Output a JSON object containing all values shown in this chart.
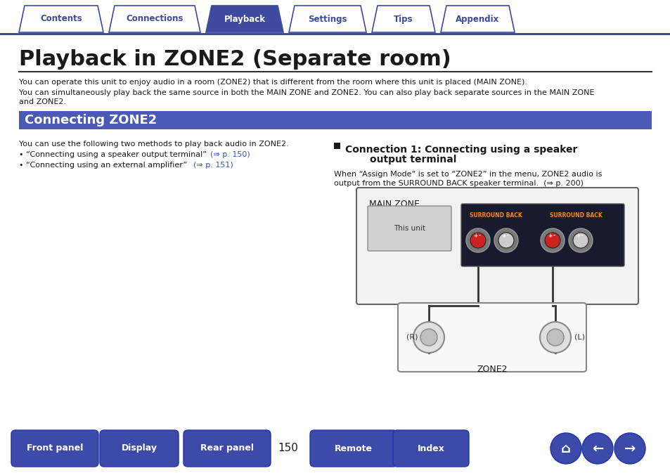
{
  "bg_color": "#ffffff",
  "tab_items": [
    "Contents",
    "Connections",
    "Playback",
    "Settings",
    "Tips",
    "Appendix"
  ],
  "tab_active": 2,
  "tab_color_active": "#3d4a9e",
  "tab_color_inactive": "#ffffff",
  "tab_text_color_active": "#ffffff",
  "tab_text_color_inactive": "#3d4a9e",
  "tab_border_color": "#3d4a9e",
  "top_line_color": "#3d4a9e",
  "title": "Playback in ZONE2 (Separate room)",
  "title_fontsize": 22,
  "section_bg": "#4a5ab5",
  "section_text": "Connecting ZONE2",
  "section_text_color": "#ffffff",
  "section_fontsize": 13,
  "body_text1": "You can operate this unit to enjoy audio in a room (ZONE2) that is different from the room where this unit is placed (MAIN ZONE).",
  "body_text2": "You can simultaneously play back the same source in both the MAIN ZONE and ZONE2. You can also play back separate sources in the MAIN ZONE",
  "body_text3": "and ZONE2.",
  "left_intro": "You can use the following two methods to play back audio in ZONE2.",
  "bullet1a": "• “Connecting using a speaker output terminal”",
  "bullet1b": "(⇒ p. 150)",
  "bullet2a": "• “Connecting using an external amplifier”",
  "bullet2b": "(⇒ p. 151)",
  "right_title1": "Connection 1: Connecting using a speaker",
  "right_title2": "output terminal",
  "right_body1": "When “Assign Mode” is set to “ZONE2” in the menu, ZONE2 audio is",
  "right_body2": "output from the SURROUND BACK speaker terminal.  (⇒ p. 200)",
  "bottom_buttons": [
    "Front panel",
    "Display",
    "Rear panel",
    "Remote",
    "Index"
  ],
  "page_number": "150",
  "btn_color": "#3d4aaa",
  "btn_text_color": "#ffffff",
  "diagram_main_zone_label": "MAIN ZONE",
  "diagram_zone2_label": "ZONE2",
  "diagram_this_unit_label": "This unit",
  "nav_icon_color": "#3d4ab0"
}
